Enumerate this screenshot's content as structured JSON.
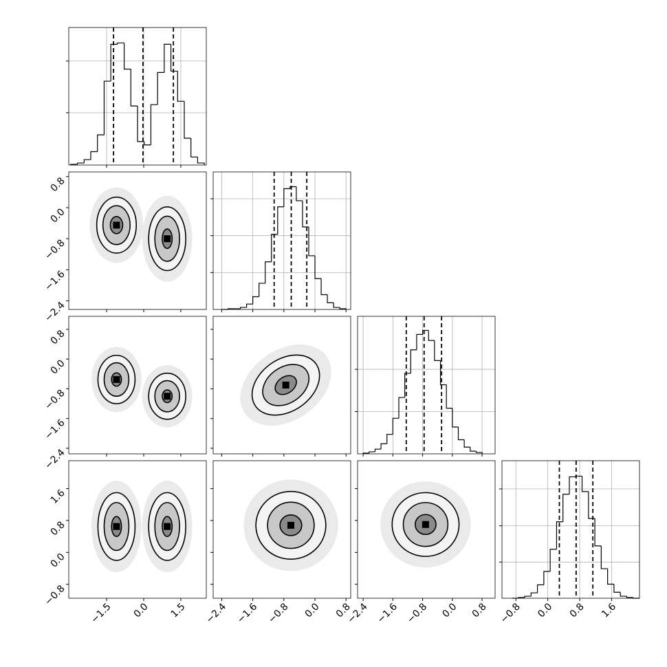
{
  "chart_data": {
    "type": "corner",
    "grid": true,
    "color": "#000000",
    "parameters": [
      {
        "lim": [
          -3.03,
          2.53
        ],
        "ticks": [
          {
            "value": -1.5,
            "label": "−1.5"
          },
          {
            "value": 0,
            "label": "0.0"
          },
          1.5
        ],
        "bins": [
          -2.95,
          -2.68,
          -2.41,
          -2.14,
          -1.87,
          -1.6,
          -1.33,
          -1.06,
          -0.79,
          -0.52,
          -0.25,
          0.02,
          0.29,
          0.56,
          0.83,
          1.1,
          1.37,
          1.64,
          1.91,
          2.18,
          2.45
        ],
        "counts": [
          1,
          3,
          8,
          20,
          45,
          125,
          180,
          182,
          143,
          88,
          35,
          30,
          90,
          138,
          180,
          140,
          95,
          40,
          12,
          3
        ],
        "quantiles": [
          -1.22,
          -0.03,
          1.2
        ],
        "hist_ylim": [
          0,
          205
        ],
        "hist_yticks": [
          78,
          155
        ]
      },
      {
        "lim": [
          -2.62,
          0.92
        ],
        "ticks": [
          {
            "value": -2.4,
            "label": "−2.4"
          },
          {
            "value": -1.6,
            "label": "−1.6"
          },
          {
            "value": -0.8,
            "label": "−0.8"
          },
          {
            "value": 0,
            "label": "0.0"
          },
          0.8
        ],
        "bins": [
          -2.4,
          -2.24,
          -2.08,
          -1.92,
          -1.76,
          -1.6,
          -1.44,
          -1.28,
          -1.12,
          -0.96,
          -0.8,
          -0.64,
          -0.48,
          -0.32,
          -0.16,
          0,
          0.16,
          0.32,
          0.48,
          0.64,
          0.8
        ],
        "counts": [
          0,
          1,
          1,
          3,
          8,
          19,
          39,
          71,
          112,
          153,
          180,
          183,
          162,
          123,
          80,
          46,
          22,
          10,
          3,
          1
        ],
        "quantiles": [
          -1.05,
          -0.61,
          -0.21
        ],
        "hist_ylim": [
          0,
          205
        ],
        "hist_yticks": [
          55,
          110,
          165
        ]
      },
      {
        "lim": [
          -2.55,
          1.15
        ],
        "ticks": [
          {
            "value": -2.4,
            "label": "−2.4"
          },
          {
            "value": -1.6,
            "label": "−1.6"
          },
          {
            "value": -0.8,
            "label": "−0.8"
          },
          {
            "value": 0,
            "label": "0.0"
          },
          0.8
        ],
        "bins": [
          -2.4,
          -2.24,
          -2.08,
          -1.92,
          -1.76,
          -1.6,
          -1.44,
          -1.28,
          -1.12,
          -0.96,
          -0.8,
          -0.64,
          -0.48,
          -0.32,
          -0.16,
          0,
          0.16,
          0.32,
          0.48,
          0.64,
          0.8
        ],
        "counts": [
          1,
          3,
          7,
          15,
          29,
          53,
          84,
          120,
          155,
          178,
          184,
          169,
          139,
          103,
          68,
          40,
          21,
          10,
          4,
          2
        ],
        "quantiles": [
          -1.24,
          -0.76,
          -0.29
        ],
        "hist_ylim": [
          0,
          205
        ],
        "hist_yticks": [
          63,
          126
        ]
      },
      {
        "lim": [
          -1.15,
          2.3
        ],
        "ticks": [
          {
            "value": -0.8,
            "label": "−0.8"
          },
          {
            "value": 0,
            "label": "0.0"
          },
          0.8,
          1.6
        ],
        "bins": [
          -0.9,
          -0.74,
          -0.58,
          -0.42,
          -0.26,
          -0.1,
          0.06,
          0.22,
          0.38,
          0.54,
          0.7,
          0.86,
          1.02,
          1.18,
          1.34,
          1.5,
          1.66,
          1.82,
          1.98,
          2.14,
          2.3
        ],
        "counts": [
          0,
          1,
          3,
          8,
          20,
          40,
          73,
          114,
          155,
          181,
          182,
          159,
          119,
          78,
          44,
          21,
          9,
          3,
          1,
          0
        ],
        "quantiles": [
          0.29,
          0.71,
          1.13
        ],
        "hist_ylim": [
          0,
          205
        ],
        "hist_yticks": [
          54,
          108,
          163
        ]
      }
    ],
    "panels": [
      {
        "x": 0,
        "y": 1,
        "clusters": [
          {
            "center": [
              -1.1,
              -0.45
            ],
            "levels": [
              [
                0.8,
                0.72
              ],
              [
                0.55,
                0.5
              ],
              [
                0.25,
                0.22
              ]
            ],
            "angle": 0
          },
          {
            "center": [
              0.95,
              -0.8
            ],
            "levels": [
              [
                0.75,
                0.82
              ],
              [
                0.5,
                0.58
              ],
              [
                0.2,
                0.25
              ]
            ],
            "angle": 0
          }
        ]
      },
      {
        "x": 0,
        "y": 2,
        "clusters": [
          {
            "center": [
              -1.1,
              -0.55
            ],
            "levels": [
              [
                0.75,
                0.65
              ],
              [
                0.5,
                0.45
              ],
              [
                0.2,
                0.18
              ]
            ],
            "angle": 0
          },
          {
            "center": [
              0.95,
              -1.0
            ],
            "levels": [
              [
                0.75,
                0.62
              ],
              [
                0.5,
                0.42
              ],
              [
                0.2,
                0.17
              ]
            ],
            "angle": 0
          }
        ]
      },
      {
        "x": 1,
        "y": 2,
        "clusters": [
          {
            "center": [
              -0.75,
              -0.7
            ],
            "levels": [
              [
                0.95,
                0.7
              ],
              [
                0.65,
                0.48
              ],
              [
                0.3,
                0.22
              ]
            ],
            "angle": 35
          }
        ]
      },
      {
        "x": 0,
        "y": 3,
        "clusters": [
          {
            "center": [
              -1.1,
              0.65
            ],
            "levels": [
              [
                0.75,
                0.85
              ],
              [
                0.5,
                0.6
              ],
              [
                0.2,
                0.25
              ]
            ],
            "angle": 0
          },
          {
            "center": [
              0.95,
              0.65
            ],
            "levels": [
              [
                0.75,
                0.85
              ],
              [
                0.5,
                0.6
              ],
              [
                0.2,
                0.25
              ]
            ],
            "angle": 0
          }
        ]
      },
      {
        "x": 1,
        "y": 3,
        "clusters": [
          {
            "center": [
              -0.62,
              0.68
            ],
            "levels": [
              [
                0.9,
                0.85
              ],
              [
                0.6,
                0.58
              ],
              [
                0.28,
                0.26
              ]
            ],
            "angle": 0
          }
        ]
      },
      {
        "x": 2,
        "y": 3,
        "clusters": [
          {
            "center": [
              -0.72,
              0.7
            ],
            "levels": [
              [
                0.9,
                0.8
              ],
              [
                0.6,
                0.55
              ],
              [
                0.28,
                0.25
              ]
            ],
            "angle": 0
          }
        ]
      }
    ]
  }
}
